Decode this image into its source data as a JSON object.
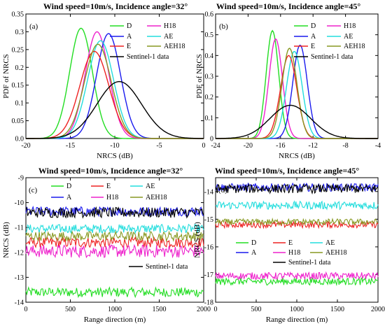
{
  "chart_data": [
    {
      "panel": "(a)",
      "type": "line",
      "title": "Wind speed=10m/s, Incidence angle=32°",
      "xlabel": "NRCS (dB)",
      "ylabel": "PDF of NRCS",
      "xlim": [
        -20,
        0
      ],
      "ylim": [
        0,
        0.35
      ],
      "xticks": [
        -20,
        -15,
        -10,
        -5,
        0
      ],
      "yticks": [
        0,
        0.05,
        0.1,
        0.15,
        0.2,
        0.25,
        0.3,
        0.35
      ],
      "xtick_labels": [
        "-20",
        "-15",
        "-10",
        "-5",
        "0"
      ],
      "ytick_labels": [
        "0.0",
        "0.05",
        "0.1",
        "0.15",
        "0.2",
        "0.25",
        "0.3",
        "0.35"
      ],
      "legend_position": "top-right",
      "series": [
        {
          "name": "D",
          "color": "#22dd22",
          "mean": -13.8,
          "peak": 0.31
        },
        {
          "name": "H18",
          "color": "#ee22cc",
          "mean": -12.0,
          "peak": 0.3
        },
        {
          "name": "A",
          "color": "#1a1aee",
          "mean": -10.7,
          "peak": 0.295
        },
        {
          "name": "AE",
          "color": "#22dddd",
          "mean": -11.6,
          "peak": 0.275
        },
        {
          "name": "E",
          "color": "#ee2222",
          "mean": -12.3,
          "peak": 0.245
        },
        {
          "name": "AEH18",
          "color": "#889922",
          "mean": -11.9,
          "peak": 0.265
        },
        {
          "name": "Sentinel-1 data",
          "color": "#000000",
          "mean": -9.5,
          "peak": 0.16
        }
      ]
    },
    {
      "panel": "(b)",
      "type": "line",
      "title": "Wind speed=10m/s, Incidence angle=45°",
      "xlabel": "NRCS (dB)",
      "ylabel": "PDF of NRCS",
      "xlim": [
        -24,
        -4
      ],
      "ylim": [
        0,
        0.6
      ],
      "xticks": [
        -24,
        -20,
        -16,
        -12,
        -8,
        -4
      ],
      "yticks": [
        0,
        0.1,
        0.2,
        0.3,
        0.4,
        0.5,
        0.6
      ],
      "xtick_labels": [
        "-24",
        "-20",
        "-16",
        "-12",
        "-8",
        "-4"
      ],
      "ytick_labels": [
        "0",
        "0.1",
        "0.2",
        "0.3",
        "0.4",
        "0.5",
        "0.6"
      ],
      "legend_position": "top-right",
      "series": [
        {
          "name": "D",
          "color": "#22dd22",
          "mean": -17.0,
          "peak": 0.52
        },
        {
          "name": "H18",
          "color": "#ee22cc",
          "mean": -16.6,
          "peak": 0.48
        },
        {
          "name": "A",
          "color": "#1a1aee",
          "mean": -13.6,
          "peak": 0.45
        },
        {
          "name": "AE",
          "color": "#22dddd",
          "mean": -14.3,
          "peak": 0.42
        },
        {
          "name": "E",
          "color": "#ee2222",
          "mean": -15.0,
          "peak": 0.4
        },
        {
          "name": "AEH18",
          "color": "#889922",
          "mean": -14.9,
          "peak": 0.435
        },
        {
          "name": "Sentinel-1 data",
          "color": "#000000",
          "mean": -14.8,
          "peak": 0.16
        }
      ]
    },
    {
      "panel": "(c)",
      "type": "line",
      "title": "Wind speed=10m/s, Incidence angle=32°",
      "xlabel": "Range direction (m)",
      "ylabel": "NRCS (dB)",
      "xlim": [
        0,
        2000
      ],
      "ylim": [
        -14,
        -9
      ],
      "xticks": [
        0,
        500,
        1000,
        1500,
        2000
      ],
      "yticks": [
        -14,
        -13,
        -12,
        -11,
        -10,
        -9
      ],
      "xtick_labels": [
        "0",
        "500",
        "1000",
        "1500",
        "2000"
      ],
      "ytick_labels": [
        "-14",
        "-13",
        "-12",
        "-11",
        "-10",
        "-9"
      ],
      "series": [
        {
          "name": "D",
          "color": "#22dd22",
          "mean": -13.6
        },
        {
          "name": "E",
          "color": "#ee2222",
          "mean": -11.6
        },
        {
          "name": "AE",
          "color": "#22dddd",
          "mean": -11.05
        },
        {
          "name": "A",
          "color": "#1a1aee",
          "mean": -10.35
        },
        {
          "name": "H18",
          "color": "#ee22cc",
          "mean": -11.95
        },
        {
          "name": "AEH18",
          "color": "#889922",
          "mean": -11.35
        },
        {
          "name": "Sentinel-1 data",
          "color": "#000000",
          "mean": -10.4
        }
      ]
    },
    {
      "panel": "(d)",
      "type": "line",
      "title": "Wind speed=10m/s, Incidence angle=45°",
      "xlabel": "Range direction (m)",
      "ylabel": "NRCS (dB)",
      "xlim": [
        0,
        2000
      ],
      "ylim": [
        -18,
        -13.5
      ],
      "xticks": [
        0,
        500,
        1000,
        1500,
        2000
      ],
      "yticks": [
        -18,
        -17,
        -16,
        -15,
        -14
      ],
      "xtick_labels": [
        "0",
        "500",
        "1000",
        "1500",
        "2000"
      ],
      "ytick_labels": [
        "-18",
        "-17",
        "-16",
        "-15",
        "-14"
      ],
      "series": [
        {
          "name": "D",
          "color": "#22dd22",
          "mean": -17.25
        },
        {
          "name": "E",
          "color": "#ee2222",
          "mean": -15.2
        },
        {
          "name": "AE",
          "color": "#22dddd",
          "mean": -14.5
        },
        {
          "name": "A",
          "color": "#1a1aee",
          "mean": -13.85
        },
        {
          "name": "H18",
          "color": "#ee22cc",
          "mean": -17.05
        },
        {
          "name": "AEH18",
          "color": "#889922",
          "mean": -15.1
        },
        {
          "name": "Sentinel-1 data",
          "color": "#000000",
          "mean": -13.9
        }
      ]
    }
  ]
}
